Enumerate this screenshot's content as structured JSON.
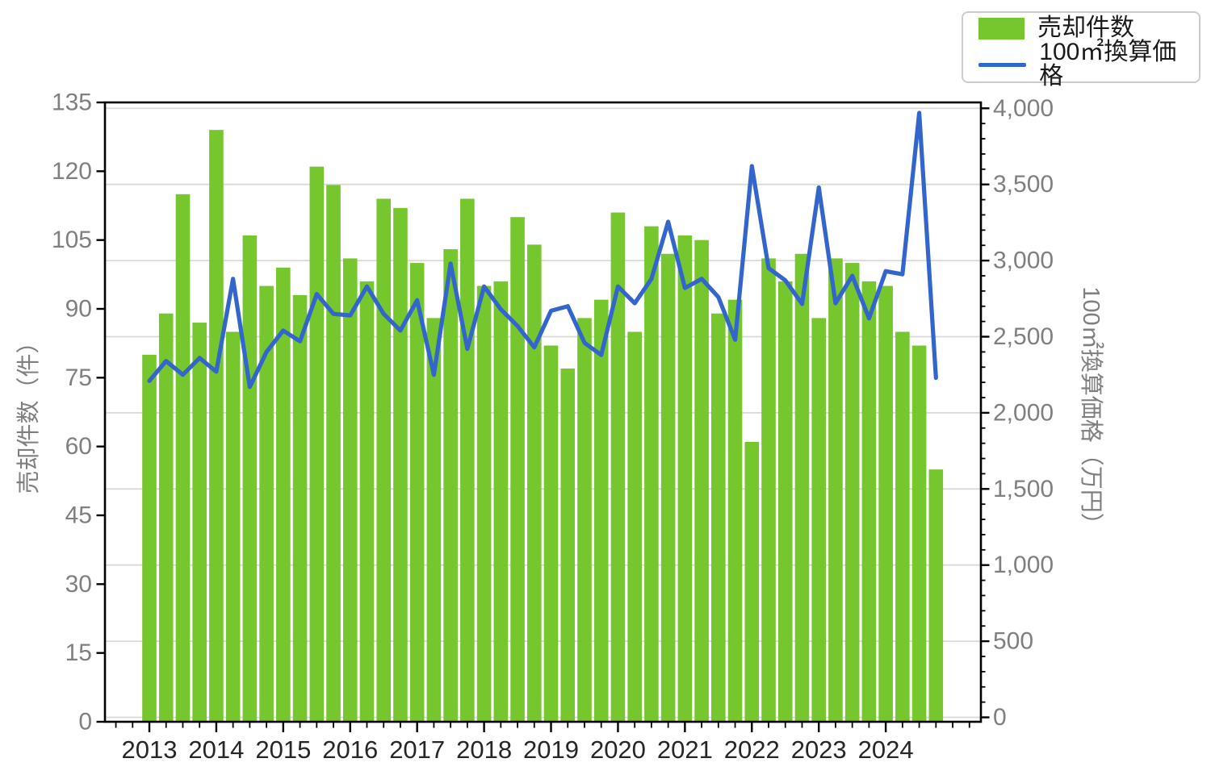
{
  "chart_data": {
    "type": "combo",
    "title": "",
    "categories": [
      "2013Q1",
      "2013Q2",
      "2013Q3",
      "2013Q4",
      "2014Q1",
      "2014Q2",
      "2014Q3",
      "2014Q4",
      "2015Q1",
      "2015Q2",
      "2015Q3",
      "2015Q4",
      "2016Q1",
      "2016Q2",
      "2016Q3",
      "2016Q4",
      "2017Q1",
      "2017Q2",
      "2017Q3",
      "2017Q4",
      "2018Q1",
      "2018Q2",
      "2018Q3",
      "2018Q4",
      "2019Q1",
      "2019Q2",
      "2019Q3",
      "2019Q4",
      "2020Q1",
      "2020Q2",
      "2020Q3",
      "2020Q4",
      "2021Q1",
      "2021Q2",
      "2021Q3",
      "2021Q4",
      "2022Q1",
      "2022Q2",
      "2022Q3",
      "2022Q4",
      "2023Q1",
      "2023Q2",
      "2023Q3",
      "2023Q4",
      "2024Q1",
      "2024Q2",
      "2024Q3",
      "2024Q4"
    ],
    "series": [
      {
        "name": "売却件数",
        "type": "bar",
        "color": "#76C62E",
        "axis": "left",
        "values": [
          80,
          89,
          115,
          87,
          129,
          85,
          106,
          95,
          99,
          93,
          121,
          117,
          101,
          96,
          114,
          112,
          100,
          88,
          103,
          114,
          95,
          96,
          110,
          104,
          82,
          77,
          88,
          92,
          111,
          85,
          108,
          102,
          106,
          105,
          89,
          92,
          61,
          101,
          96,
          102,
          88,
          101,
          100,
          96,
          95,
          85,
          82,
          55
        ]
      },
      {
        "name": "100㎡換算価格",
        "type": "line",
        "color": "#3366CC",
        "axis": "right",
        "values": [
          2210,
          2340,
          2250,
          2360,
          2270,
          2880,
          2170,
          2400,
          2540,
          2470,
          2780,
          2650,
          2640,
          2830,
          2650,
          2540,
          2740,
          2250,
          2980,
          2420,
          2830,
          2680,
          2570,
          2430,
          2670,
          2700,
          2460,
          2380,
          2830,
          2720,
          2880,
          3255,
          2820,
          2880,
          2760,
          2480,
          3620,
          2950,
          2870,
          2715,
          3480,
          2720,
          2900,
          2620,
          2930,
          2910,
          3970,
          2230
        ]
      }
    ],
    "left_axis": {
      "label": "売却件数（件）",
      "min": 0,
      "max": 135,
      "tick_step": 15,
      "tick_labels": [
        "0",
        "15",
        "30",
        "45",
        "60",
        "75",
        "90",
        "105",
        "120",
        "135"
      ]
    },
    "right_axis": {
      "label": "100㎡換算価格（万円）",
      "min": 0,
      "max": 4000,
      "tick_step": 500,
      "minor_tick_step": 100,
      "tick_labels": [
        "0",
        "500",
        "1,000",
        "1,500",
        "2,000",
        "2,500",
        "3,000",
        "3,500",
        "4,000"
      ]
    },
    "x_axis": {
      "tick_labels": [
        "2013",
        "2014",
        "2015",
        "2016",
        "2017",
        "2018",
        "2019",
        "2020",
        "2021",
        "2022",
        "2023",
        "2024"
      ],
      "minor_ticks": "quarterly"
    },
    "legend": {
      "position": "top-right",
      "items": [
        "売却件数",
        "100㎡換算価格"
      ]
    },
    "grid": {
      "horizontal": true,
      "vertical": false,
      "interval_right_axis": 500
    },
    "colors": {
      "bar": "#76C62E",
      "line": "#3366CC",
      "grid": "#D9D9D9",
      "spine": "#000000",
      "y_tick_label": "#7f7f7f",
      "x_tick_label": "#262626",
      "axis_title": "#7f7f7f",
      "legend_border": "#CCCCCC",
      "background": "#FFFFFF"
    }
  }
}
